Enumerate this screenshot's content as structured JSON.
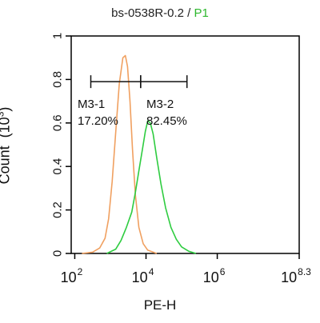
{
  "title": {
    "sample": "bs-0538R-0.2",
    "separator": " / ",
    "gate": "P1",
    "gate_color": "#2eb82e"
  },
  "chart_data": {
    "type": "line",
    "title": "bs-0538R-0.2 / P1",
    "xlabel": "PE-H",
    "ylabel_main": "Count",
    "ylabel_unit": "(10",
    "ylabel_exp": "3",
    "ylabel_close": ")",
    "x_scale": "log",
    "xlim_log10": [
      1.9,
      8.3
    ],
    "ylim": [
      0,
      1
    ],
    "y_ticks": [
      {
        "value": 0,
        "label": "0"
      },
      {
        "value": 0.2,
        "label": "0.2"
      },
      {
        "value": 0.4,
        "label": "0.4"
      },
      {
        "value": 0.6,
        "label": "0.6"
      },
      {
        "value": 0.8,
        "label": "0.8"
      },
      {
        "value": 1,
        "label": "1"
      }
    ],
    "x_ticks": [
      {
        "log10": 2,
        "base": "10",
        "exp": "2"
      },
      {
        "log10": 4,
        "base": "10",
        "exp": "4"
      },
      {
        "log10": 6,
        "base": "10",
        "exp": "6"
      },
      {
        "log10": 8.3,
        "base": "10",
        "exp": "8.3"
      }
    ],
    "grid": false,
    "series": [
      {
        "color": "#f0a060",
        "points": [
          [
            2.2,
            0
          ],
          [
            2.5,
            0.006
          ],
          [
            2.7,
            0.025
          ],
          [
            2.85,
            0.07
          ],
          [
            2.95,
            0.16
          ],
          [
            3.05,
            0.33
          ],
          [
            3.15,
            0.56
          ],
          [
            3.25,
            0.78
          ],
          [
            3.35,
            0.9
          ],
          [
            3.42,
            0.91
          ],
          [
            3.48,
            0.86
          ],
          [
            3.55,
            0.7
          ],
          [
            3.62,
            0.48
          ],
          [
            3.7,
            0.27
          ],
          [
            3.8,
            0.12
          ],
          [
            3.92,
            0.045
          ],
          [
            4.05,
            0.015
          ],
          [
            4.3,
            0
          ]
        ]
      },
      {
        "color": "#2ecc40",
        "points": [
          [
            2.9,
            0
          ],
          [
            3.15,
            0.02
          ],
          [
            3.3,
            0.06
          ],
          [
            3.45,
            0.12
          ],
          [
            3.6,
            0.19
          ],
          [
            3.7,
            0.28
          ],
          [
            3.8,
            0.38
          ],
          [
            3.9,
            0.48
          ],
          [
            3.98,
            0.56
          ],
          [
            4.05,
            0.61
          ],
          [
            4.12,
            0.6
          ],
          [
            4.2,
            0.55
          ],
          [
            4.3,
            0.44
          ],
          [
            4.42,
            0.32
          ],
          [
            4.55,
            0.21
          ],
          [
            4.7,
            0.12
          ],
          [
            4.85,
            0.065
          ],
          [
            5.0,
            0.03
          ],
          [
            5.2,
            0.01
          ],
          [
            5.4,
            0
          ]
        ]
      }
    ],
    "gates": [
      {
        "name": "M3-1",
        "percent": "17.20%",
        "x_from_log10": 2.45,
        "x_to_log10": 3.85,
        "y": 0.79
      },
      {
        "name": "M3-2",
        "percent": "82.45%",
        "x_from_log10": 3.85,
        "x_to_log10": 5.15,
        "y": 0.79
      }
    ]
  }
}
